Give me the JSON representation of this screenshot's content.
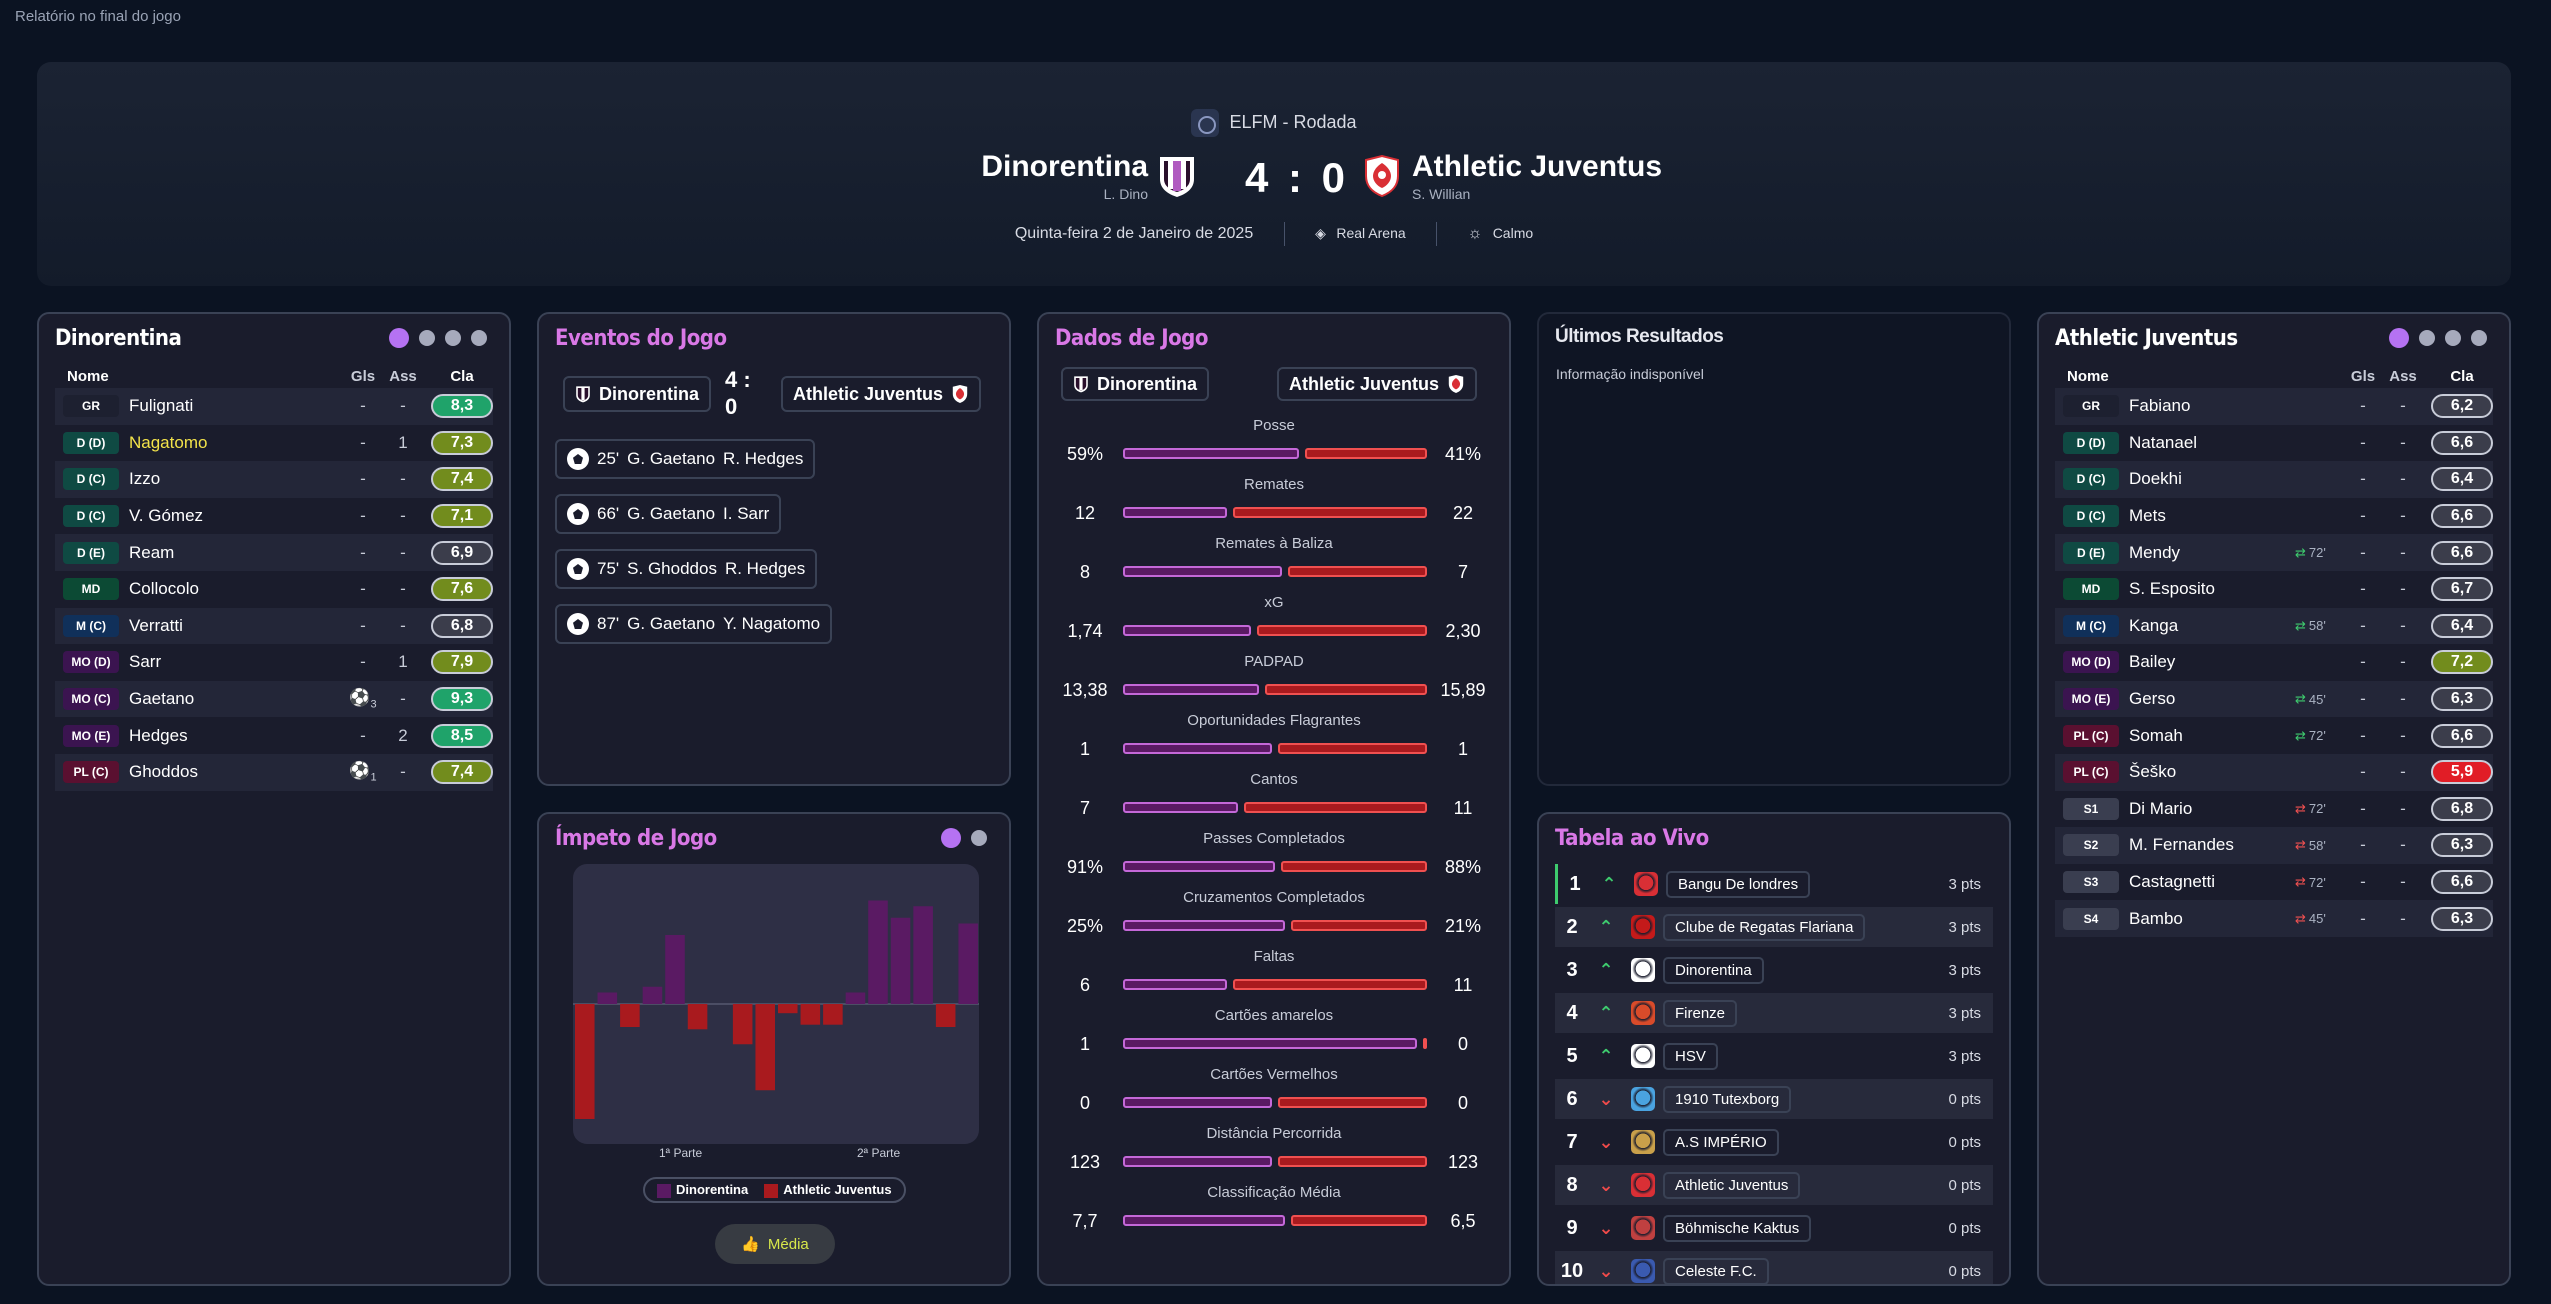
{
  "page_title": "Relatório no final do jogo",
  "header": {
    "competition": "ELFM - Rodada",
    "home_team": "Dinorentina",
    "home_manager": "L. Dino",
    "away_team": "Athletic Juventus",
    "away_manager": "S. Willian",
    "score": "4 : 0",
    "date": "Quinta-feira 2 de Janeiro de 2025",
    "stadium": "Real Arena",
    "weather": "Calmo"
  },
  "home_panel": {
    "title": "Dinorentina",
    "col_name": "Nome",
    "col_gls": "Gls",
    "col_ass": "Ass",
    "col_cla": "Cla",
    "players": [
      {
        "pos": "GR",
        "name": "Fulignati",
        "gls": "-",
        "ass": "-",
        "rating": "8,3",
        "rclass": "r-g"
      },
      {
        "pos": "D (D)",
        "name": "Nagatomo",
        "gls": "-",
        "ass": "1",
        "rating": "7,3",
        "rclass": "r-o"
      },
      {
        "pos": "D (C)",
        "name": "Izzo",
        "gls": "-",
        "ass": "-",
        "rating": "7,4",
        "rclass": "r-o"
      },
      {
        "pos": "D (C)",
        "name": "V. Gómez",
        "gls": "-",
        "ass": "-",
        "rating": "7,1",
        "rclass": "r-o"
      },
      {
        "pos": "D (E)",
        "name": "Ream",
        "gls": "-",
        "ass": "-",
        "rating": "6,9",
        "rclass": "r-n"
      },
      {
        "pos": "MD",
        "name": "Collocolo",
        "gls": "-",
        "ass": "-",
        "rating": "7,6",
        "rclass": "r-o"
      },
      {
        "pos": "M (C)",
        "name": "Verratti",
        "gls": "-",
        "ass": "-",
        "rating": "6,8",
        "rclass": "r-n"
      },
      {
        "pos": "MO (D)",
        "name": "Sarr",
        "gls": "-",
        "ass": "1",
        "rating": "7,9",
        "rclass": "r-o"
      },
      {
        "pos": "MO (C)",
        "name": "Gaetano",
        "gls": "3",
        "ass": "-",
        "rating": "9,3",
        "rclass": "r-g"
      },
      {
        "pos": "MO (E)",
        "name": "Hedges",
        "gls": "-",
        "ass": "2",
        "rating": "8,5",
        "rclass": "r-g"
      },
      {
        "pos": "PL (C)",
        "name": "Ghoddos",
        "gls": "1",
        "ass": "-",
        "rating": "7,4",
        "rclass": "r-o"
      }
    ]
  },
  "events_panel": {
    "title": "Eventos do Jogo",
    "home": "Dinorentina",
    "away": "Athletic Juventus",
    "score_top": "4 :",
    "score_bottom": "0",
    "events": [
      {
        "minute": "25'",
        "scorer": "G. Gaetano",
        "assist": "R. Hedges"
      },
      {
        "minute": "66'",
        "scorer": "G. Gaetano",
        "assist": "I. Sarr"
      },
      {
        "minute": "75'",
        "scorer": "S. Ghoddos",
        "assist": "R. Hedges"
      },
      {
        "minute": "87'",
        "scorer": "G. Gaetano",
        "assist": "Y. Nagatomo"
      }
    ]
  },
  "momentum_panel": {
    "title": "Ímpeto de Jogo",
    "first_half": "1ª Parte",
    "second_half": "2ª Parte",
    "legend_home": "Dinorentina",
    "legend_away": "Athletic Juventus",
    "button": "Média"
  },
  "chart_data": {
    "type": "bar",
    "title": "Ímpeto de Jogo",
    "xlabel": "",
    "ylabel": "",
    "x_ticks": [
      "1ª Parte",
      "2ª Parte"
    ],
    "series": [
      {
        "name": "Dinorentina",
        "values": [
          0,
          0.1,
          0,
          0.15,
          0.6,
          0,
          0,
          0,
          0,
          0,
          0,
          0,
          0.1,
          0.9,
          0.75,
          0.85,
          0,
          0.7
        ]
      },
      {
        "name": "Athletic Juventus",
        "values": [
          -1.0,
          0,
          -0.2,
          0,
          0,
          -0.22,
          0,
          -0.35,
          -0.75,
          -0.08,
          -0.18,
          -0.18,
          0,
          0,
          0,
          0,
          -0.2,
          0
        ]
      }
    ],
    "ylim": [
      -1.1,
      1.0
    ]
  },
  "stats_panel": {
    "title": "Dados de Jogo",
    "home": "Dinorentina",
    "away": "Athletic Juventus",
    "stats": [
      {
        "label": "Posse",
        "home": "59%",
        "away": "41%",
        "hv": 59,
        "av": 41
      },
      {
        "label": "Remates",
        "home": "12",
        "away": "22",
        "hv": 12,
        "av": 22
      },
      {
        "label": "Remates à Baliza",
        "home": "8",
        "away": "7",
        "hv": 8,
        "av": 7
      },
      {
        "label": "xG",
        "home": "1,74",
        "away": "2,30",
        "hv": 1.74,
        "av": 2.3
      },
      {
        "label": "PADPAD",
        "home": "13,38",
        "away": "15,89",
        "hv": 13.38,
        "av": 15.89
      },
      {
        "label": "Oportunidades Flagrantes",
        "home": "1",
        "away": "1",
        "hv": 1,
        "av": 1
      },
      {
        "label": "Cantos",
        "home": "7",
        "away": "11",
        "hv": 7,
        "av": 11
      },
      {
        "label": "Passes Completados",
        "home": "91%",
        "away": "88%",
        "hv": 91,
        "av": 88
      },
      {
        "label": "Cruzamentos Completados",
        "home": "25%",
        "away": "21%",
        "hv": 25,
        "av": 21
      },
      {
        "label": "Faltas",
        "home": "6",
        "away": "11",
        "hv": 6,
        "av": 11
      },
      {
        "label": "Cartões amarelos",
        "home": "1",
        "away": "0",
        "hv": 1,
        "av": 0
      },
      {
        "label": "Cartões Vermelhos",
        "home": "0",
        "away": "0",
        "hv": 0,
        "av": 0
      },
      {
        "label": "Distância Percorrida",
        "home": "123",
        "away": "123",
        "hv": 123,
        "av": 123
      },
      {
        "label": "Classificação Média",
        "home": "7,7",
        "away": "6,5",
        "hv": 7.7,
        "av": 6.5
      }
    ]
  },
  "results_panel": {
    "title": "Últimos Resultados",
    "message": "Informação indisponível"
  },
  "table_panel": {
    "title": "Tabela ao Vivo",
    "rows": [
      {
        "pos": "1",
        "dir": "up",
        "team": "Bangu De londres",
        "pts": "3 pts"
      },
      {
        "pos": "2",
        "dir": "up",
        "team": "Clube de Regatas Flariana",
        "pts": "3 pts"
      },
      {
        "pos": "3",
        "dir": "up",
        "team": "Dinorentina",
        "pts": "3 pts"
      },
      {
        "pos": "4",
        "dir": "up",
        "team": "Firenze",
        "pts": "3 pts"
      },
      {
        "pos": "5",
        "dir": "up",
        "team": "HSV",
        "pts": "3 pts"
      },
      {
        "pos": "6",
        "dir": "dn",
        "team": "1910 Tutexborg",
        "pts": "0 pts"
      },
      {
        "pos": "7",
        "dir": "dn",
        "team": "A.S IMPÉRIO",
        "pts": "0 pts"
      },
      {
        "pos": "8",
        "dir": "dn",
        "team": "Athletic Juventus",
        "pts": "0 pts"
      },
      {
        "pos": "9",
        "dir": "dn",
        "team": "Böhmische Kaktus",
        "pts": "0 pts"
      },
      {
        "pos": "10",
        "dir": "dn",
        "team": "Celeste F.C.",
        "pts": "0 pts"
      }
    ]
  },
  "away_panel": {
    "title": "Athletic Juventus",
    "col_name": "Nome",
    "col_gls": "Gls",
    "col_ass": "Ass",
    "col_cla": "Cla",
    "players": [
      {
        "pos": "GR",
        "name": "Fabiano",
        "sub": "",
        "gls": "-",
        "ass": "-",
        "rating": "6,2",
        "rclass": "r-n"
      },
      {
        "pos": "D (D)",
        "name": "Natanael",
        "sub": "",
        "gls": "-",
        "ass": "-",
        "rating": "6,6",
        "rclass": "r-n"
      },
      {
        "pos": "D (C)",
        "name": "Doekhi",
        "sub": "",
        "gls": "-",
        "ass": "-",
        "rating": "6,4",
        "rclass": "r-n"
      },
      {
        "pos": "D (C)",
        "name": "Mets",
        "sub": "",
        "gls": "-",
        "ass": "-",
        "rating": "6,6",
        "rclass": "r-n"
      },
      {
        "pos": "D (E)",
        "name": "Mendy",
        "sub": "72'",
        "gls": "-",
        "ass": "-",
        "rating": "6,6",
        "rclass": "r-n"
      },
      {
        "pos": "MD",
        "name": "S. Esposito",
        "sub": "",
        "gls": "-",
        "ass": "-",
        "rating": "6,7",
        "rclass": "r-n"
      },
      {
        "pos": "M (C)",
        "name": "Kanga",
        "sub": "58'",
        "gls": "-",
        "ass": "-",
        "rating": "6,4",
        "rclass": "r-n"
      },
      {
        "pos": "MO (D)",
        "name": "Bailey",
        "sub": "",
        "gls": "-",
        "ass": "-",
        "rating": "7,2",
        "rclass": "r-o"
      },
      {
        "pos": "MO (E)",
        "name": "Gerso",
        "sub": "45'",
        "gls": "-",
        "ass": "-",
        "rating": "6,3",
        "rclass": "r-n"
      },
      {
        "pos": "PL (C)",
        "name": "Somah",
        "sub": "72'",
        "gls": "-",
        "ass": "-",
        "rating": "6,6",
        "rclass": "r-n"
      },
      {
        "pos": "PL (C)",
        "name": "Šeško",
        "sub": "",
        "gls": "-",
        "ass": "-",
        "rating": "5,9",
        "rclass": "r-r"
      },
      {
        "pos": "S1",
        "name": "Di Mario",
        "sub": "72'",
        "gls": "-",
        "ass": "-",
        "rating": "6,8",
        "rclass": "r-n"
      },
      {
        "pos": "S2",
        "name": "M. Fernandes",
        "sub": "58'",
        "gls": "-",
        "ass": "-",
        "rating": "6,3",
        "rclass": "r-n"
      },
      {
        "pos": "S3",
        "name": "Castagnetti",
        "sub": "72'",
        "gls": "-",
        "ass": "-",
        "rating": "6,6",
        "rclass": "r-n"
      },
      {
        "pos": "S4",
        "name": "Bambo",
        "sub": "45'",
        "gls": "-",
        "ass": "-",
        "rating": "6,3",
        "rclass": "r-n"
      }
    ]
  }
}
